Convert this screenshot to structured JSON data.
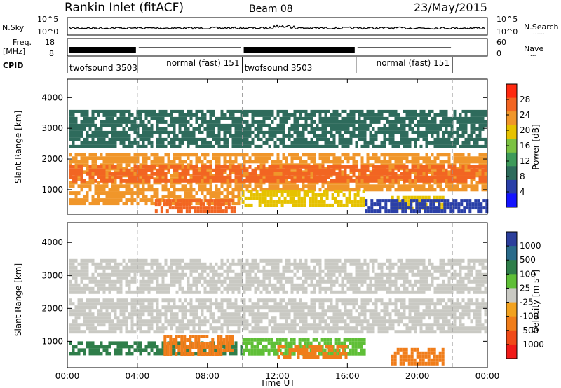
{
  "header": {
    "title": "Rankin Inlet (fitACF)",
    "beam": "Beam 08",
    "date": "23/May/2015"
  },
  "nsky_panel": {
    "left_label": "N.Sky",
    "right_label": "N.Search",
    "left_ticks": [
      "10^5",
      "10^0"
    ],
    "right_ticks": [
      "10^5",
      "10^0"
    ],
    "legend_dots": "........"
  },
  "freq_panel": {
    "left_label_line1": "Freq.",
    "left_label_line2": "[MHz]",
    "right_label": "Nave",
    "left_ticks": [
      "18",
      "8"
    ],
    "right_ticks": [
      "60",
      "0"
    ],
    "legend_dots": "....",
    "cpid_label": "CPID",
    "cpid_segments": [
      {
        "label": "twofsound 3503",
        "start_hour": 0.0,
        "end_hour": 4.0
      },
      {
        "label": "normal (fast) 151",
        "start_hour": 4.0,
        "end_hour": 10.0
      },
      {
        "label": "twofsound 3503",
        "start_hour": 10.0,
        "end_hour": 16.5
      },
      {
        "label": "normal (fast) 151",
        "start_hour": 16.5,
        "end_hour": 22.0
      }
    ]
  },
  "colors": {
    "power_scale": [
      "#1414ff",
      "#2a3fa8",
      "#2e6b5c",
      "#3e9a5a",
      "#7cc242",
      "#e6c200",
      "#f0962a",
      "#f26522",
      "#ff2a10"
    ],
    "velocity_scale": [
      "#2c3f9c",
      "#2a6b8a",
      "#2f7e4a",
      "#5fbf37",
      "#c9c9c3",
      "#f2a21f",
      "#f07d1a",
      "#f04a18",
      "#f01a18"
    ]
  },
  "chart_data": [
    {
      "type": "heatmap",
      "title": "",
      "quantity": "Power [dB]",
      "xlabel": "Time UT",
      "ylabel": "Slant Range [km]",
      "x_range_hours": [
        0,
        24
      ],
      "xticks": [
        "00:00",
        "04:00",
        "08:00",
        "12:00",
        "16:00",
        "20:00",
        "00:00"
      ],
      "ylim": [
        200,
        4600
      ],
      "yticks": [
        1000,
        2000,
        3000,
        4000
      ],
      "colorbar_label": "Power [dB]",
      "colorbar_ticks": [
        4,
        8,
        12,
        16,
        20,
        24,
        28
      ],
      "colorbar_range": [
        0,
        32
      ],
      "dashed_vertical_lines_hours": [
        4,
        10,
        22
      ],
      "regions": [
        {
          "start_hour": 0.1,
          "end_hour": 23.9,
          "range_min": 1000,
          "range_max": 2200,
          "value": 22
        },
        {
          "start_hour": 0.1,
          "end_hour": 23.9,
          "range_min": 1250,
          "range_max": 1800,
          "value": 28
        },
        {
          "start_hour": 0.1,
          "end_hour": 9.8,
          "range_min": 500,
          "range_max": 950,
          "value": 24
        },
        {
          "start_hour": 5.0,
          "end_hour": 9.5,
          "range_min": 300,
          "range_max": 700,
          "value": 26
        },
        {
          "start_hour": 9.8,
          "end_hour": 17.0,
          "range_min": 500,
          "range_max": 1000,
          "value": 18
        },
        {
          "start_hour": 0.1,
          "end_hour": 23.9,
          "range_min": 2400,
          "range_max": 3600,
          "value": 10
        },
        {
          "start_hour": 18.5,
          "end_hour": 21.5,
          "range_min": 400,
          "range_max": 800,
          "value": 20
        },
        {
          "start_hour": 17.0,
          "end_hour": 23.9,
          "range_min": 300,
          "range_max": 700,
          "value": 6
        }
      ]
    },
    {
      "type": "heatmap",
      "title": "",
      "quantity": "Velocity [m s^-1]",
      "xlabel": "Time UT",
      "ylabel": "Slant Range [km]",
      "x_range_hours": [
        0,
        24
      ],
      "xticks": [
        "00:00",
        "04:00",
        "08:00",
        "12:00",
        "16:00",
        "20:00",
        "00:00"
      ],
      "ylim": [
        200,
        4600
      ],
      "yticks": [
        1000,
        2000,
        3000,
        4000
      ],
      "colorbar_label": "Velocity [m s^-1]",
      "colorbar_ticks": [
        1000,
        500,
        100,
        25,
        -25,
        -100,
        -500,
        -1000
      ],
      "dashed_vertical_lines_hours": [
        4,
        10,
        22
      ],
      "regions": [
        {
          "start_hour": 0.1,
          "end_hour": 23.9,
          "range_min": 1250,
          "range_max": 2300,
          "value": 0
        },
        {
          "start_hour": 0.1,
          "end_hour": 10.0,
          "range_min": 650,
          "range_max": 1000,
          "value": 150
        },
        {
          "start_hour": 5.5,
          "end_hour": 9.5,
          "range_min": 600,
          "range_max": 1200,
          "value": -300
        },
        {
          "start_hour": 10.0,
          "end_hour": 17.0,
          "range_min": 650,
          "range_max": 1100,
          "value": 80
        },
        {
          "start_hour": 12.0,
          "end_hour": 16.0,
          "range_min": 500,
          "range_max": 900,
          "value": -200
        },
        {
          "start_hour": 18.5,
          "end_hour": 21.5,
          "range_min": 350,
          "range_max": 800,
          "value": -150
        },
        {
          "start_hour": 0.1,
          "end_hour": 23.9,
          "range_min": 2500,
          "range_max": 3500,
          "value": 0
        }
      ]
    }
  ]
}
